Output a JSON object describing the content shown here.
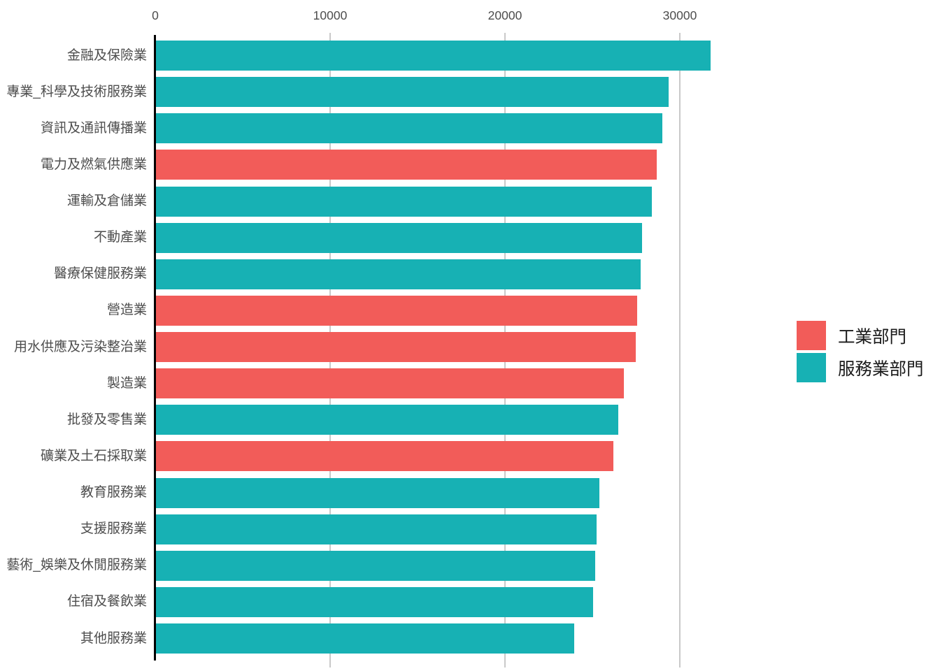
{
  "chart_data": {
    "type": "bar",
    "orientation": "horizontal",
    "title": "",
    "xlabel": "",
    "ylabel": "",
    "x_tick_labels": [
      "0",
      "10000",
      "20000",
      "30000"
    ],
    "x_tick_values": [
      0,
      10000,
      20000,
      30000
    ],
    "xlim": [
      0,
      33000
    ],
    "grid": "vertical-major-gridlines",
    "legend_position": "right",
    "legend": [
      {
        "label": "工業部門",
        "color": "#f25c59"
      },
      {
        "label": "服務業部門",
        "color": "#17b1b4"
      }
    ],
    "bars": [
      {
        "category": "金融及保險業",
        "value": 31700,
        "sector": "服務業部門"
      },
      {
        "category": "專業_科學及技術服務業",
        "value": 29300,
        "sector": "服務業部門"
      },
      {
        "category": "資訊及通訊傳播業",
        "value": 28950,
        "sector": "服務業部門"
      },
      {
        "category": "電力及燃氣供應業",
        "value": 28650,
        "sector": "工業部門"
      },
      {
        "category": "運輸及倉儲業",
        "value": 28350,
        "sector": "服務業部門"
      },
      {
        "category": "不動產業",
        "value": 27800,
        "sector": "服務業部門"
      },
      {
        "category": "醫療保健服務業",
        "value": 27700,
        "sector": "服務業部門"
      },
      {
        "category": "營造業",
        "value": 27500,
        "sector": "工業部門"
      },
      {
        "category": "用水供應及污染整治業",
        "value": 27450,
        "sector": "工業部門"
      },
      {
        "category": "製造業",
        "value": 26750,
        "sector": "工業部門"
      },
      {
        "category": "批發及零售業",
        "value": 26450,
        "sector": "服務業部門"
      },
      {
        "category": "礦業及土石採取業",
        "value": 26150,
        "sector": "工業部門"
      },
      {
        "category": "教育服務業",
        "value": 25350,
        "sector": "服務業部門"
      },
      {
        "category": "支援服務業",
        "value": 25200,
        "sector": "服務業部門"
      },
      {
        "category": "藝術_娛樂及休閒服務業",
        "value": 25100,
        "sector": "服務業部門"
      },
      {
        "category": "住宿及餐飲業",
        "value": 25000,
        "sector": "服務業部門"
      },
      {
        "category": "其他服務業",
        "value": 23900,
        "sector": "服務業部門"
      }
    ]
  },
  "colors": {
    "industry_bar": "#f25c59",
    "service_bar": "#17b1b4",
    "gridline": "#c9c9c9",
    "axis_line": "#000000",
    "tick_label_text": "#4d4d4d",
    "category_label_text": "#4d4d4d",
    "legend_text": "#1a1a1a",
    "background": "#ffffff"
  }
}
